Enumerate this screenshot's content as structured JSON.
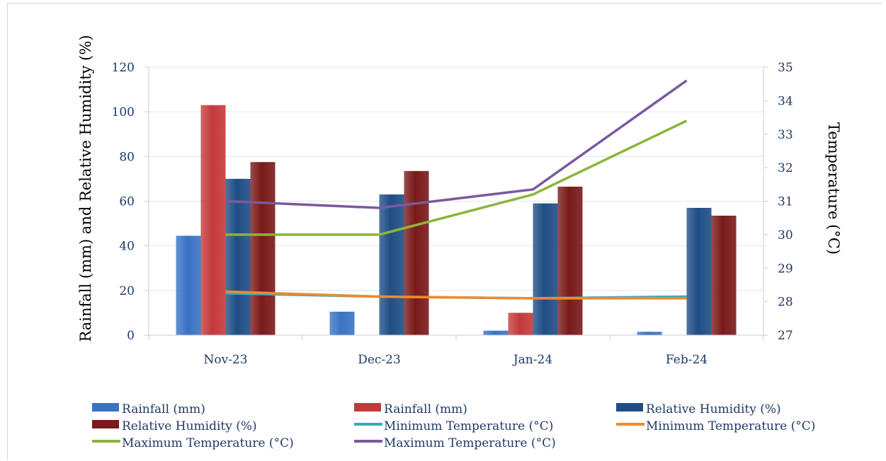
{
  "chart_data": {
    "type": "bar",
    "categories": [
      "Nov-23",
      "Dec-23",
      "Jan-24",
      "Feb-24"
    ],
    "left_axis": {
      "label": "Rainfall (mm) and Relative Humidity (%)",
      "ylim": [
        0,
        120
      ],
      "ticks": [
        "0",
        "20",
        "40",
        "60",
        "80",
        "100",
        "120"
      ]
    },
    "right_axis": {
      "label": "Temperature (°C)",
      "ylim": [
        27,
        35
      ],
      "ticks": [
        "27",
        "28",
        "29",
        "30",
        "31",
        "32",
        "33",
        "34",
        "35"
      ]
    },
    "grid": true,
    "legend_position": "bottom",
    "bar_series": [
      {
        "name": "Rainfall (mm)",
        "values": [
          44.5,
          10.5,
          2,
          1.5
        ],
        "color": "#3a73c4"
      },
      {
        "name": "Rainfall (mm)",
        "values": [
          103,
          0,
          10,
          0
        ],
        "color": "#c43a3a"
      },
      {
        "name": "Relative Humidity (%)",
        "values": [
          70,
          63,
          59,
          57
        ],
        "color": "#1f4e85"
      },
      {
        "name": "Relative Humidity (%)",
        "values": [
          77.5,
          73.5,
          66.5,
          53.5
        ],
        "color": "#7a1a1a"
      }
    ],
    "line_series": [
      {
        "name": "Minimum Temperature  (°C)",
        "values": [
          28.25,
          28.15,
          28.1,
          28.15
        ],
        "color": "#3aa8c4"
      },
      {
        "name": "Minimum Temperature  (°C)",
        "values": [
          28.3,
          28.15,
          28.1,
          28.1
        ],
        "color": "#f08a2c"
      },
      {
        "name": "Maximum Temperature (°C)",
        "values": [
          30,
          30,
          31.2,
          33.4
        ],
        "color": "#8db43a"
      },
      {
        "name": "Maximum Temperature (°C)",
        "values": [
          31,
          30.8,
          31.35,
          34.6
        ],
        "color": "#7a5a9e"
      }
    ]
  }
}
